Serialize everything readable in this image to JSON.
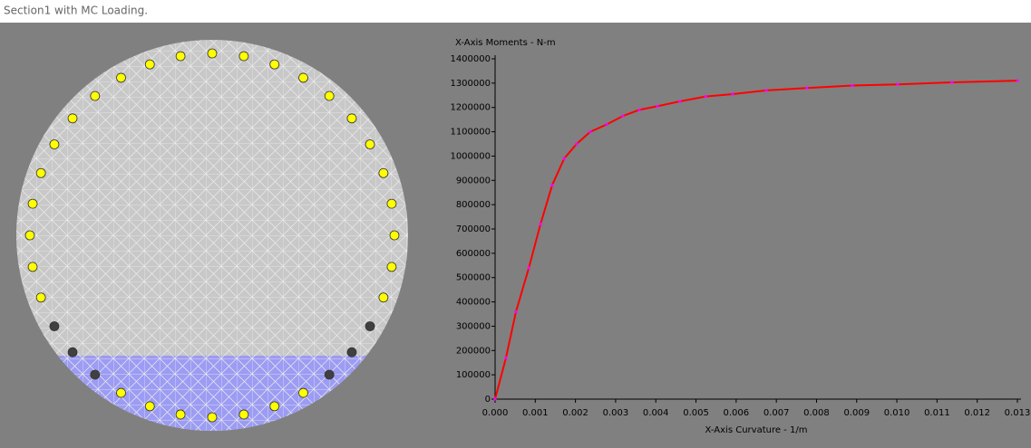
{
  "window": {
    "title": "Section1 with MC Loading."
  },
  "chart_data": {
    "type": "line",
    "y_label": "X-Axis Moments - N-m",
    "x_label": "X-Axis Curvature - 1/m",
    "x": [
      0,
      0.00027,
      0.00052,
      0.00084,
      0.00113,
      0.00142,
      0.00172,
      0.00203,
      0.00237,
      0.00278,
      0.00318,
      0.00359,
      0.00404,
      0.0046,
      0.00524,
      0.00591,
      0.00675,
      0.00776,
      0.00889,
      0.01002,
      0.01137,
      0.013
    ],
    "series": [
      {
        "name": "X-Axis Moments",
        "color": "#ff0000",
        "marker_color": "#ff00ff",
        "values": [
          0,
          170000,
          360000,
          540000,
          720000,
          880000,
          990000,
          1050000,
          1100000,
          1130000,
          1165000,
          1190000,
          1205000,
          1225000,
          1245000,
          1255000,
          1270000,
          1280000,
          1290000,
          1295000,
          1303000,
          1310000
        ]
      }
    ],
    "xlim": [
      0,
      0.013
    ],
    "ylim": [
      0,
      1400000
    ],
    "xticks": [
      {
        "value": 0,
        "label": "0.000"
      },
      {
        "value": 0.001,
        "label": "0.001"
      },
      {
        "value": 0.002,
        "label": "0.002"
      },
      {
        "value": 0.003,
        "label": "0.003"
      },
      {
        "value": 0.004,
        "label": "0.004"
      },
      {
        "value": 0.005,
        "label": "0.005"
      },
      {
        "value": 0.006,
        "label": "0.006"
      },
      {
        "value": 0.007,
        "label": "0.007"
      },
      {
        "value": 0.008,
        "label": "0.008"
      },
      {
        "value": 0.009,
        "label": "0.009"
      },
      {
        "value": 0.01,
        "label": "0.010"
      },
      {
        "value": 0.011,
        "label": "0.011"
      },
      {
        "value": 0.012,
        "label": "0.012"
      },
      {
        "value": 0.013,
        "label": "0.013"
      }
    ],
    "yticks": [
      0,
      100000,
      200000,
      300000,
      400000,
      500000,
      600000,
      700000,
      800000,
      900000,
      1000000,
      1100000,
      1200000,
      1300000,
      1400000
    ]
  }
}
